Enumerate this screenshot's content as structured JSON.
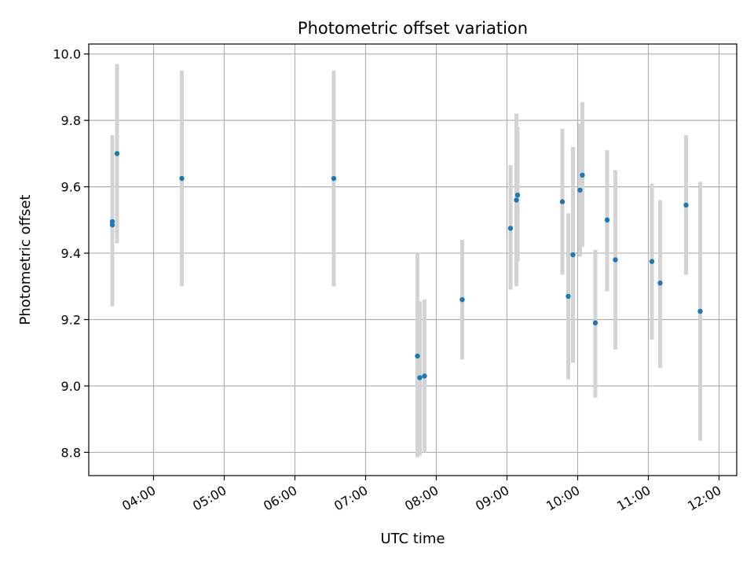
{
  "chart_data": {
    "type": "scatter",
    "title": "Photometric offset variation",
    "xlabel": "UTC time",
    "ylabel": "Photometric offset",
    "x_is_time": true,
    "xlim": [
      "03:05",
      "12:15"
    ],
    "ylim": [
      8.73,
      10.03
    ],
    "x_ticks": [
      "04:00",
      "05:00",
      "06:00",
      "07:00",
      "08:00",
      "09:00",
      "10:00",
      "11:00",
      "12:00"
    ],
    "y_ticks": [
      8.8,
      9.0,
      9.2,
      9.4,
      9.6,
      9.8,
      10.0
    ],
    "y_tick_labels": [
      "8.8",
      "9.0",
      "9.2",
      "9.4",
      "9.6",
      "9.8",
      "10.0"
    ],
    "grid": true,
    "colors": {
      "point": "#1f77b4",
      "errorbar": "#d3d3d3",
      "grid": "#b0b0b0"
    },
    "points": [
      {
        "time": "03:25",
        "y": 9.485,
        "err_low": 9.24,
        "err_high": 9.755
      },
      {
        "time": "03:25",
        "y": 9.495,
        "err_low": 9.24,
        "err_high": 9.755
      },
      {
        "time": "03:29",
        "y": 9.7,
        "err_low": 9.43,
        "err_high": 9.97
      },
      {
        "time": "04:24",
        "y": 9.625,
        "err_low": 9.3,
        "err_high": 9.95
      },
      {
        "time": "06:33",
        "y": 9.625,
        "err_low": 9.3,
        "err_high": 9.95
      },
      {
        "time": "07:44",
        "y": 9.09,
        "err_low": 8.785,
        "err_high": 9.4
      },
      {
        "time": "07:46",
        "y": 9.025,
        "err_low": 8.79,
        "err_high": 9.255
      },
      {
        "time": "07:50",
        "y": 9.03,
        "err_low": 8.8,
        "err_high": 9.26
      },
      {
        "time": "08:22",
        "y": 9.26,
        "err_low": 9.08,
        "err_high": 9.44
      },
      {
        "time": "09:03",
        "y": 9.475,
        "err_low": 9.29,
        "err_high": 9.665
      },
      {
        "time": "09:08",
        "y": 9.56,
        "err_low": 9.3,
        "err_high": 9.82
      },
      {
        "time": "09:09",
        "y": 9.575,
        "err_low": 9.375,
        "err_high": 9.78
      },
      {
        "time": "09:47",
        "y": 9.555,
        "err_low": 9.335,
        "err_high": 9.775
      },
      {
        "time": "09:52",
        "y": 9.27,
        "err_low": 9.02,
        "err_high": 9.52
      },
      {
        "time": "09:56",
        "y": 9.395,
        "err_low": 9.07,
        "err_high": 9.72
      },
      {
        "time": "10:02",
        "y": 9.59,
        "err_low": 9.39,
        "err_high": 9.79
      },
      {
        "time": "10:04",
        "y": 9.635,
        "err_low": 9.42,
        "err_high": 9.855
      },
      {
        "time": "10:15",
        "y": 9.19,
        "err_low": 8.965,
        "err_high": 9.41
      },
      {
        "time": "10:25",
        "y": 9.5,
        "err_low": 9.285,
        "err_high": 9.71
      },
      {
        "time": "10:32",
        "y": 9.38,
        "err_low": 9.11,
        "err_high": 9.65
      },
      {
        "time": "11:03",
        "y": 9.375,
        "err_low": 9.14,
        "err_high": 9.61
      },
      {
        "time": "11:10",
        "y": 9.31,
        "err_low": 9.055,
        "err_high": 9.56
      },
      {
        "time": "11:32",
        "y": 9.545,
        "err_low": 9.335,
        "err_high": 9.755
      },
      {
        "time": "11:44",
        "y": 9.225,
        "err_low": 8.835,
        "err_high": 9.615
      }
    ]
  }
}
